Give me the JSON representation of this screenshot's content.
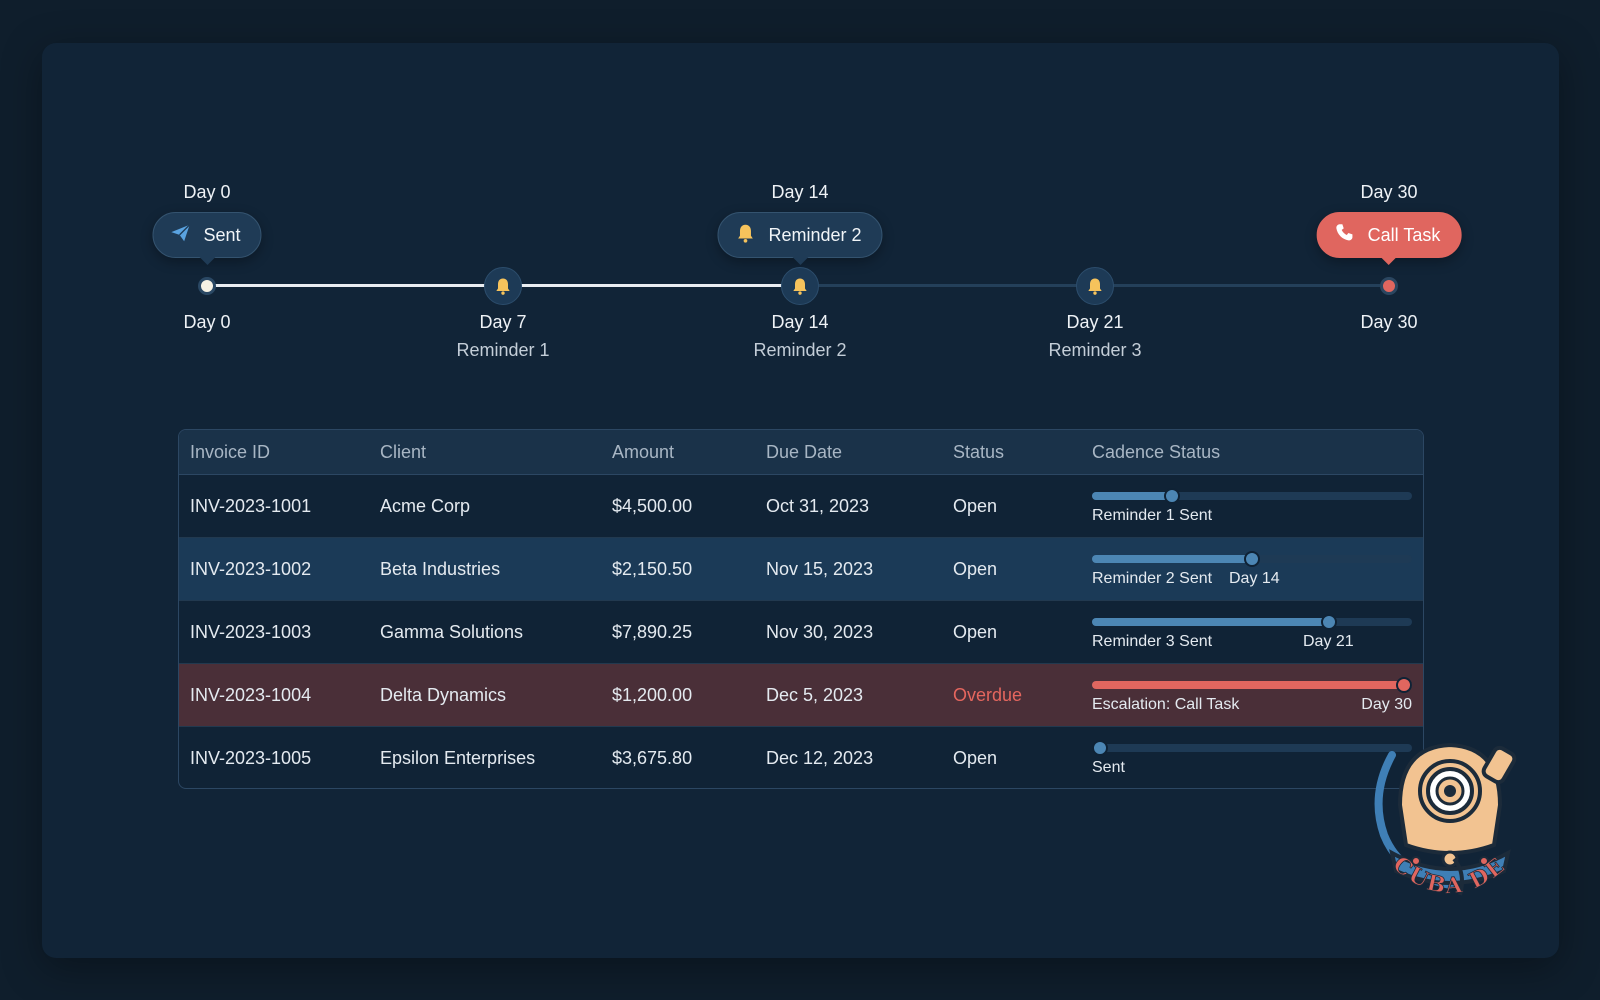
{
  "timeline": {
    "top_labels": [
      "Day 0",
      "Day 14",
      "Day 30"
    ],
    "bubbles": [
      {
        "label": "Sent",
        "icon": "paper-plane-icon"
      },
      {
        "label": "Reminder 2",
        "icon": "bell-icon"
      },
      {
        "label": "Call Task",
        "icon": "phone-icon"
      }
    ],
    "milestones": [
      {
        "day": "Day 0",
        "name": ""
      },
      {
        "day": "Day 7",
        "name": "Reminder 1"
      },
      {
        "day": "Day 14",
        "name": "Reminder 2"
      },
      {
        "day": "Day 21",
        "name": "Reminder 3"
      },
      {
        "day": "Day 30",
        "name": ""
      }
    ]
  },
  "table": {
    "headers": [
      "Invoice ID",
      "Client",
      "Amount",
      "Due Date",
      "Status",
      "Cadence Status"
    ],
    "rows": [
      {
        "id": "INV-2023-1001",
        "client": "Acme Corp",
        "amount": "$4,500.00",
        "due": "Oct 31, 2023",
        "status": "Open",
        "cadence_label": "Reminder 1 Sent",
        "cadence_day": "",
        "progress": 0.25
      },
      {
        "id": "INV-2023-1002",
        "client": "Beta Industries",
        "amount": "$2,150.50",
        "due": "Nov 15, 2023",
        "status": "Open",
        "cadence_label": "Reminder 2 Sent",
        "cadence_day": "Day 14",
        "progress": 0.5
      },
      {
        "id": "INV-2023-1003",
        "client": "Gamma Solutions",
        "amount": "$7,890.25",
        "due": "Nov 30, 2023",
        "status": "Open",
        "cadence_label": "Reminder 3 Sent",
        "cadence_day": "Day 21",
        "progress": 0.74
      },
      {
        "id": "INV-2023-1004",
        "client": "Delta Dynamics",
        "amount": "$1,200.00",
        "due": "Dec 5, 2023",
        "status": "Overdue",
        "cadence_label": "Escalation: Call Task",
        "cadence_day": "Day 30",
        "progress": 1.0
      },
      {
        "id": "INV-2023-1005",
        "client": "Epsilon Enterprises",
        "amount": "$3,675.80",
        "due": "Dec 12, 2023",
        "status": "Open",
        "cadence_label": "Sent",
        "cadence_day": "",
        "progress": 0.0
      }
    ]
  },
  "logo": {
    "text": "SCUBA DEV"
  },
  "colors": {
    "accent_blue": "#4c86b4",
    "alert_red": "#e0665f",
    "bell_yellow": "#f6c35c",
    "background": "#0f1e2c",
    "panel": "#112437"
  }
}
